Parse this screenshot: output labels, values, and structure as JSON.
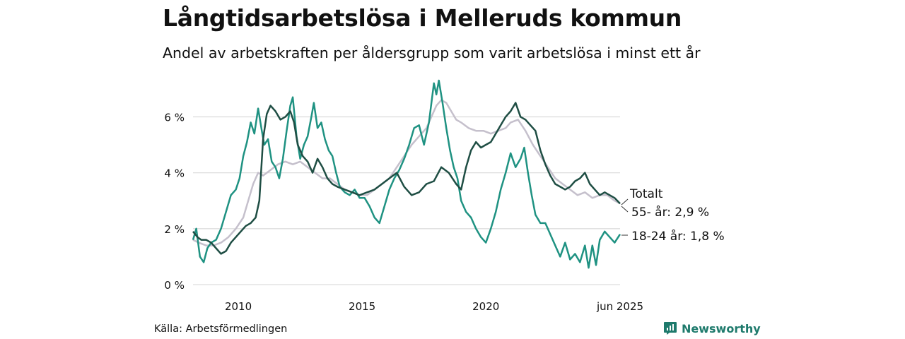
{
  "title": "Långtidsarbetslösa i Melleruds kommun",
  "subtitle": "Andel av arbetskraften per åldersgrupp som varit arbetslösa i minst ett år",
  "source": "Källa: Arbetsförmedlingen",
  "brand": {
    "name": "Newsworthy",
    "icon": "bar-chart-logo-icon"
  },
  "colors": {
    "total": "#1f4e44",
    "age55": "#c5c0cc",
    "age18_24": "#1f9282",
    "grid": "#dddddd",
    "brand": "#1e7a6c"
  },
  "chart_data": {
    "type": "line",
    "x_tick_labels": [
      "2010",
      "2015",
      "2020",
      "jun 2025"
    ],
    "x_tick_values": [
      2010,
      2015,
      2020,
      2025.42
    ],
    "xlim": [
      2008.17,
      2025.42
    ],
    "y_tick_labels": [
      "0 %",
      "2 %",
      "4 %",
      "6 %"
    ],
    "y_tick_values": [
      0,
      2,
      4,
      6
    ],
    "ylim": [
      0,
      7.4
    ],
    "grid": true,
    "series_labels": [
      "Totalt",
      "55- år: 2,9 %",
      "18-24 år: 1,8 %"
    ],
    "series": [
      {
        "name": "Totalt",
        "color": "#1f4e44",
        "points": [
          [
            2008.17,
            1.9
          ],
          [
            2008.35,
            1.7
          ],
          [
            2008.5,
            1.6
          ],
          [
            2008.7,
            1.6
          ],
          [
            2008.9,
            1.5
          ],
          [
            2009.1,
            1.3
          ],
          [
            2009.3,
            1.1
          ],
          [
            2009.5,
            1.2
          ],
          [
            2009.7,
            1.5
          ],
          [
            2009.9,
            1.7
          ],
          [
            2010.1,
            1.9
          ],
          [
            2010.3,
            2.1
          ],
          [
            2010.5,
            2.2
          ],
          [
            2010.7,
            2.4
          ],
          [
            2010.85,
            3.0
          ],
          [
            2011.0,
            5.2
          ],
          [
            2011.15,
            6.1
          ],
          [
            2011.3,
            6.4
          ],
          [
            2011.5,
            6.2
          ],
          [
            2011.7,
            5.9
          ],
          [
            2011.9,
            6.0
          ],
          [
            2012.1,
            6.2
          ],
          [
            2012.25,
            5.8
          ],
          [
            2012.4,
            5.0
          ],
          [
            2012.6,
            4.6
          ],
          [
            2012.8,
            4.4
          ],
          [
            2013.0,
            4.0
          ],
          [
            2013.2,
            4.5
          ],
          [
            2013.4,
            4.2
          ],
          [
            2013.6,
            3.8
          ],
          [
            2013.8,
            3.6
          ],
          [
            2014.0,
            3.5
          ],
          [
            2014.3,
            3.4
          ],
          [
            2014.6,
            3.3
          ],
          [
            2014.9,
            3.2
          ],
          [
            2015.2,
            3.3
          ],
          [
            2015.5,
            3.4
          ],
          [
            2015.8,
            3.6
          ],
          [
            2016.1,
            3.8
          ],
          [
            2016.4,
            4.0
          ],
          [
            2016.7,
            3.5
          ],
          [
            2017.0,
            3.2
          ],
          [
            2017.3,
            3.3
          ],
          [
            2017.6,
            3.6
          ],
          [
            2017.9,
            3.7
          ],
          [
            2018.2,
            4.2
          ],
          [
            2018.5,
            4.0
          ],
          [
            2018.8,
            3.6
          ],
          [
            2019.0,
            3.4
          ],
          [
            2019.2,
            4.2
          ],
          [
            2019.4,
            4.8
          ],
          [
            2019.6,
            5.1
          ],
          [
            2019.8,
            4.9
          ],
          [
            2020.0,
            5.0
          ],
          [
            2020.2,
            5.1
          ],
          [
            2020.4,
            5.4
          ],
          [
            2020.6,
            5.7
          ],
          [
            2020.8,
            6.0
          ],
          [
            2021.0,
            6.2
          ],
          [
            2021.2,
            6.5
          ],
          [
            2021.4,
            6.0
          ],
          [
            2021.6,
            5.9
          ],
          [
            2021.8,
            5.7
          ],
          [
            2022.0,
            5.5
          ],
          [
            2022.2,
            4.8
          ],
          [
            2022.4,
            4.3
          ],
          [
            2022.6,
            3.9
          ],
          [
            2022.8,
            3.6
          ],
          [
            2023.0,
            3.5
          ],
          [
            2023.2,
            3.4
          ],
          [
            2023.4,
            3.5
          ],
          [
            2023.6,
            3.7
          ],
          [
            2023.8,
            3.8
          ],
          [
            2024.0,
            4.0
          ],
          [
            2024.2,
            3.6
          ],
          [
            2024.4,
            3.4
          ],
          [
            2024.6,
            3.2
          ],
          [
            2024.8,
            3.3
          ],
          [
            2025.0,
            3.2
          ],
          [
            2025.2,
            3.1
          ],
          [
            2025.42,
            2.9
          ]
        ]
      },
      {
        "name": "55- år: 2,9 %",
        "color": "#c5c0cc",
        "points": [
          [
            2008.17,
            1.6
          ],
          [
            2008.4,
            1.5
          ],
          [
            2008.7,
            1.4
          ],
          [
            2009.0,
            1.4
          ],
          [
            2009.3,
            1.5
          ],
          [
            2009.6,
            1.7
          ],
          [
            2009.9,
            2.0
          ],
          [
            2010.2,
            2.4
          ],
          [
            2010.4,
            3.0
          ],
          [
            2010.6,
            3.6
          ],
          [
            2010.8,
            4.0
          ],
          [
            2011.0,
            3.9
          ],
          [
            2011.3,
            4.1
          ],
          [
            2011.6,
            4.3
          ],
          [
            2011.9,
            4.4
          ],
          [
            2012.2,
            4.3
          ],
          [
            2012.5,
            4.4
          ],
          [
            2012.8,
            4.2
          ],
          [
            2013.1,
            4.0
          ],
          [
            2013.4,
            3.8
          ],
          [
            2013.7,
            3.8
          ],
          [
            2014.0,
            3.6
          ],
          [
            2014.3,
            3.4
          ],
          [
            2014.6,
            3.3
          ],
          [
            2014.9,
            3.2
          ],
          [
            2015.2,
            3.2
          ],
          [
            2015.5,
            3.4
          ],
          [
            2015.8,
            3.6
          ],
          [
            2016.1,
            3.8
          ],
          [
            2016.4,
            4.2
          ],
          [
            2016.7,
            4.6
          ],
          [
            2017.0,
            5.0
          ],
          [
            2017.3,
            5.3
          ],
          [
            2017.6,
            5.6
          ],
          [
            2017.8,
            6.0
          ],
          [
            2018.0,
            6.4
          ],
          [
            2018.2,
            6.6
          ],
          [
            2018.4,
            6.5
          ],
          [
            2018.6,
            6.2
          ],
          [
            2018.8,
            5.9
          ],
          [
            2019.0,
            5.8
          ],
          [
            2019.3,
            5.6
          ],
          [
            2019.6,
            5.5
          ],
          [
            2019.9,
            5.5
          ],
          [
            2020.2,
            5.4
          ],
          [
            2020.5,
            5.5
          ],
          [
            2020.8,
            5.6
          ],
          [
            2021.0,
            5.8
          ],
          [
            2021.3,
            5.9
          ],
          [
            2021.6,
            5.5
          ],
          [
            2021.9,
            5.0
          ],
          [
            2022.2,
            4.6
          ],
          [
            2022.5,
            4.2
          ],
          [
            2022.8,
            3.8
          ],
          [
            2023.1,
            3.6
          ],
          [
            2023.4,
            3.4
          ],
          [
            2023.7,
            3.2
          ],
          [
            2024.0,
            3.3
          ],
          [
            2024.3,
            3.1
          ],
          [
            2024.6,
            3.2
          ],
          [
            2024.9,
            3.2
          ],
          [
            2025.2,
            3.0
          ],
          [
            2025.42,
            2.9
          ]
        ]
      },
      {
        "name": "18-24 år: 1,8 %",
        "color": "#1f9282",
        "points": [
          [
            2008.17,
            1.6
          ],
          [
            2008.3,
            2.0
          ],
          [
            2008.45,
            1.0
          ],
          [
            2008.6,
            0.8
          ],
          [
            2008.75,
            1.3
          ],
          [
            2008.9,
            1.5
          ],
          [
            2009.1,
            1.6
          ],
          [
            2009.3,
            2.0
          ],
          [
            2009.5,
            2.6
          ],
          [
            2009.7,
            3.2
          ],
          [
            2009.9,
            3.4
          ],
          [
            2010.05,
            3.8
          ],
          [
            2010.2,
            4.6
          ],
          [
            2010.35,
            5.1
          ],
          [
            2010.5,
            5.8
          ],
          [
            2010.65,
            5.4
          ],
          [
            2010.8,
            6.3
          ],
          [
            2010.95,
            5.5
          ],
          [
            2011.05,
            5.0
          ],
          [
            2011.2,
            5.2
          ],
          [
            2011.35,
            4.4
          ],
          [
            2011.5,
            4.2
          ],
          [
            2011.65,
            3.8
          ],
          [
            2011.8,
            4.5
          ],
          [
            2011.95,
            5.5
          ],
          [
            2012.1,
            6.4
          ],
          [
            2012.2,
            6.7
          ],
          [
            2012.35,
            5.3
          ],
          [
            2012.5,
            4.5
          ],
          [
            2012.65,
            5.0
          ],
          [
            2012.8,
            5.3
          ],
          [
            2012.95,
            6.0
          ],
          [
            2013.05,
            6.5
          ],
          [
            2013.2,
            5.6
          ],
          [
            2013.35,
            5.8
          ],
          [
            2013.5,
            5.2
          ],
          [
            2013.65,
            4.8
          ],
          [
            2013.8,
            4.6
          ],
          [
            2013.95,
            4.0
          ],
          [
            2014.1,
            3.5
          ],
          [
            2014.3,
            3.3
          ],
          [
            2014.5,
            3.2
          ],
          [
            2014.7,
            3.4
          ],
          [
            2014.9,
            3.1
          ],
          [
            2015.1,
            3.1
          ],
          [
            2015.3,
            2.8
          ],
          [
            2015.5,
            2.4
          ],
          [
            2015.7,
            2.2
          ],
          [
            2015.9,
            2.8
          ],
          [
            2016.1,
            3.4
          ],
          [
            2016.3,
            3.8
          ],
          [
            2016.5,
            4.1
          ],
          [
            2016.7,
            4.5
          ],
          [
            2016.9,
            5.0
          ],
          [
            2017.1,
            5.6
          ],
          [
            2017.3,
            5.7
          ],
          [
            2017.5,
            5.0
          ],
          [
            2017.7,
            5.8
          ],
          [
            2017.9,
            7.2
          ],
          [
            2018.0,
            6.8
          ],
          [
            2018.1,
            7.3
          ],
          [
            2018.25,
            6.5
          ],
          [
            2018.4,
            5.6
          ],
          [
            2018.55,
            4.8
          ],
          [
            2018.7,
            4.2
          ],
          [
            2018.85,
            3.8
          ],
          [
            2019.0,
            3.0
          ],
          [
            2019.2,
            2.6
          ],
          [
            2019.4,
            2.4
          ],
          [
            2019.6,
            2.0
          ],
          [
            2019.8,
            1.7
          ],
          [
            2020.0,
            1.5
          ],
          [
            2020.2,
            2.0
          ],
          [
            2020.4,
            2.6
          ],
          [
            2020.6,
            3.4
          ],
          [
            2020.8,
            4.0
          ],
          [
            2021.0,
            4.7
          ],
          [
            2021.2,
            4.2
          ],
          [
            2021.4,
            4.5
          ],
          [
            2021.55,
            4.9
          ],
          [
            2021.7,
            4.0
          ],
          [
            2021.85,
            3.2
          ],
          [
            2022.0,
            2.5
          ],
          [
            2022.2,
            2.2
          ],
          [
            2022.4,
            2.2
          ],
          [
            2022.6,
            1.8
          ],
          [
            2022.8,
            1.4
          ],
          [
            2023.0,
            1.0
          ],
          [
            2023.2,
            1.5
          ],
          [
            2023.4,
            0.9
          ],
          [
            2023.6,
            1.1
          ],
          [
            2023.8,
            0.8
          ],
          [
            2024.0,
            1.4
          ],
          [
            2024.15,
            0.6
          ],
          [
            2024.3,
            1.4
          ],
          [
            2024.45,
            0.7
          ],
          [
            2024.6,
            1.6
          ],
          [
            2024.8,
            1.9
          ],
          [
            2025.0,
            1.7
          ],
          [
            2025.2,
            1.5
          ],
          [
            2025.42,
            1.8
          ]
        ]
      }
    ]
  }
}
